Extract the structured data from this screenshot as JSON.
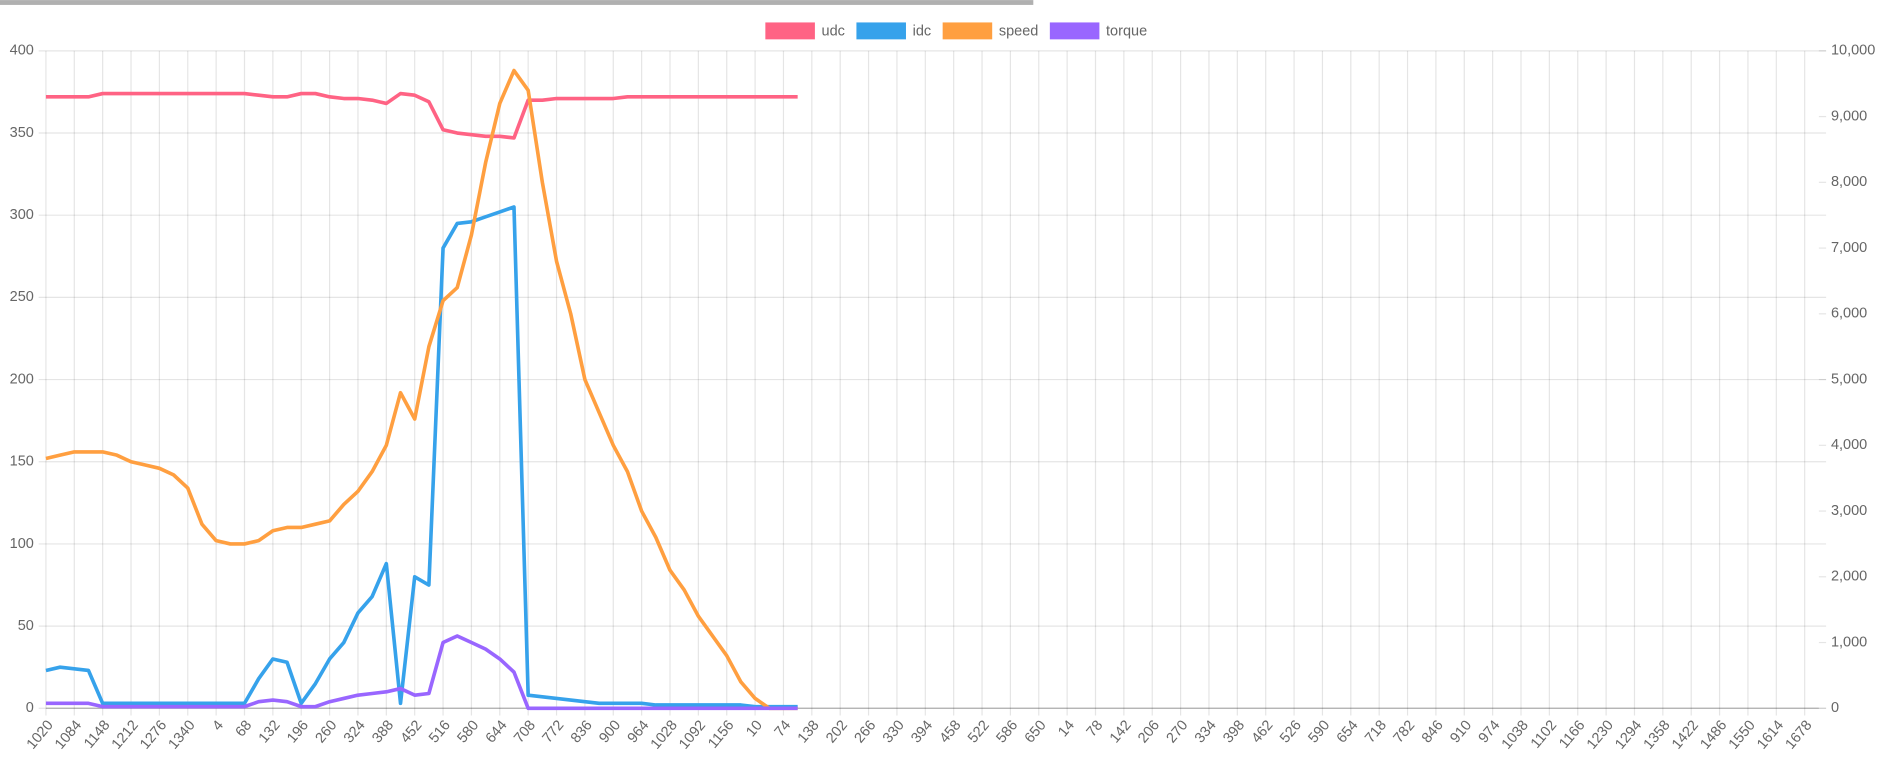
{
  "chart_data": {
    "type": "line",
    "categories": [
      "1020",
      null,
      "1084",
      null,
      "1148",
      null,
      "1212",
      null,
      "1276",
      null,
      "1340",
      null,
      "4",
      null,
      "68",
      null,
      "132",
      null,
      "196",
      null,
      "260",
      null,
      "324",
      null,
      "388",
      null,
      "452",
      null,
      "516",
      null,
      "580",
      null,
      "644",
      null,
      "708",
      null,
      "772",
      null,
      "836",
      null,
      "900",
      null,
      "964",
      null,
      "1028",
      null,
      "1092",
      null,
      "1156",
      null,
      "10",
      null,
      "74",
      null,
      "138",
      null,
      "202",
      null,
      "266",
      null,
      "330",
      null,
      "394",
      null,
      "458",
      null,
      "522",
      null,
      "586",
      null,
      "650",
      null,
      "14",
      null,
      "78",
      null,
      "142",
      null,
      "206",
      null,
      "270",
      null,
      "334",
      null,
      "398",
      null,
      "462",
      null,
      "526",
      null,
      "590",
      null,
      "654",
      null,
      "718",
      null,
      "782",
      null,
      "846",
      null,
      "910",
      null,
      "974",
      null,
      "1038",
      null,
      "1102",
      null,
      "1166",
      null,
      "1230",
      null,
      "1294",
      null,
      "1358",
      null,
      "1422",
      null,
      "1486",
      null,
      "1550",
      null,
      "1614",
      null,
      "1678",
      null
    ],
    "series": [
      {
        "name": "udc",
        "color": "#ff6384",
        "axis": "y",
        "values": [
          372,
          372,
          372,
          372,
          374,
          374,
          374,
          374,
          374,
          374,
          374,
          374,
          374,
          374,
          374,
          373,
          372,
          372,
          374,
          374,
          372,
          371,
          371,
          370,
          368,
          374,
          373,
          369,
          352,
          350,
          349,
          348,
          348,
          347,
          370,
          370,
          371,
          371,
          371,
          371,
          371,
          372,
          372,
          372,
          372,
          372,
          372,
          372,
          372,
          372,
          372,
          372,
          372,
          372,
          null,
          null,
          null,
          null,
          null,
          null,
          null,
          null,
          null,
          null,
          null,
          null,
          null,
          null,
          null,
          null,
          null,
          null,
          null,
          null,
          null,
          null,
          null,
          null,
          null,
          null,
          null,
          null,
          null,
          null,
          null,
          null,
          null,
          null,
          null,
          null,
          null,
          null,
          null,
          null,
          null,
          null,
          null,
          null,
          null,
          null,
          null,
          null,
          null,
          null,
          null,
          null,
          null,
          null,
          null,
          null,
          null,
          null,
          null,
          null,
          null,
          null,
          null,
          null,
          null,
          null,
          null,
          null,
          null,
          null,
          null,
          null
        ]
      },
      {
        "name": "idc",
        "color": "#36a2eb",
        "axis": "y",
        "values": [
          23,
          25,
          24,
          23,
          3,
          3,
          3,
          3,
          3,
          3,
          3,
          3,
          3,
          3,
          3,
          18,
          30,
          28,
          3,
          15,
          30,
          40,
          58,
          68,
          88,
          3,
          80,
          75,
          280,
          295,
          296,
          299,
          302,
          305,
          8,
          7,
          6,
          5,
          4,
          3,
          3,
          3,
          3,
          2,
          2,
          2,
          2,
          2,
          2,
          2,
          1,
          1,
          1,
          1,
          null,
          null,
          null,
          null,
          null,
          null,
          null,
          null,
          null,
          null,
          null,
          null,
          null,
          null,
          null,
          null,
          null,
          null,
          null,
          null,
          null,
          null,
          null,
          null,
          null,
          null,
          null,
          null,
          null,
          null,
          null,
          null,
          null,
          null,
          null,
          null,
          null,
          null,
          null,
          null,
          null,
          null,
          null,
          null,
          null,
          null,
          null,
          null,
          null,
          null,
          null,
          null,
          null,
          null,
          null,
          null,
          null,
          null,
          null,
          null,
          null,
          null,
          null,
          null,
          null,
          null,
          null,
          null,
          null,
          null,
          null,
          null
        ]
      },
      {
        "name": "speed",
        "color": "#ff9f40",
        "axis": "y2",
        "values": [
          3800,
          3850,
          3900,
          3900,
          3900,
          3850,
          3750,
          3700,
          3650,
          3550,
          3350,
          2800,
          2550,
          2500,
          2500,
          2550,
          2700,
          2750,
          2750,
          2800,
          2850,
          3100,
          3300,
          3600,
          4000,
          4800,
          4400,
          5500,
          6200,
          6400,
          7200,
          8300,
          9200,
          9700,
          9400,
          8000,
          6800,
          6000,
          5000,
          4500,
          4000,
          3600,
          3000,
          2600,
          2100,
          1800,
          1400,
          1100,
          800,
          400,
          150,
          0,
          0,
          0,
          null,
          null,
          null,
          null,
          null,
          null,
          null,
          null,
          null,
          null,
          null,
          null,
          null,
          null,
          null,
          null,
          null,
          null,
          null,
          null,
          null,
          null,
          null,
          null,
          null,
          null,
          null,
          null,
          null,
          null,
          null,
          null,
          null,
          null,
          null,
          null,
          null,
          null,
          null,
          null,
          null,
          null,
          null,
          null,
          null,
          null,
          null,
          null,
          null,
          null,
          null,
          null,
          null,
          null,
          null,
          null,
          null,
          null,
          null,
          null,
          null,
          null,
          null,
          null,
          null,
          null,
          null,
          null,
          null,
          null,
          null,
          null
        ]
      },
      {
        "name": "torque",
        "color": "#9966ff",
        "axis": "y",
        "values": [
          3,
          3,
          3,
          3,
          1,
          1,
          1,
          1,
          1,
          1,
          1,
          1,
          1,
          1,
          1,
          4,
          5,
          4,
          1,
          1,
          4,
          6,
          8,
          9,
          10,
          12,
          8,
          9,
          40,
          44,
          40,
          36,
          30,
          22,
          0,
          0,
          0,
          0,
          0,
          0,
          0,
          0,
          0,
          0,
          0,
          0,
          0,
          0,
          0,
          0,
          0,
          0,
          0,
          0,
          null,
          null,
          null,
          null,
          null,
          null,
          null,
          null,
          null,
          null,
          null,
          null,
          null,
          null,
          null,
          null,
          null,
          null,
          null,
          null,
          null,
          null,
          null,
          null,
          null,
          null,
          null,
          null,
          null,
          null,
          null,
          null,
          null,
          null,
          null,
          null,
          null,
          null,
          null,
          null,
          null,
          null,
          null,
          null,
          null,
          null,
          null,
          null,
          null,
          null,
          null,
          null,
          null,
          null,
          null,
          null,
          null,
          null,
          null,
          null,
          null,
          null,
          null,
          null,
          null,
          null,
          null,
          null,
          null,
          null,
          null,
          null
        ]
      }
    ],
    "ylim": [
      0,
      400
    ],
    "yticks": [
      0,
      50,
      100,
      150,
      200,
      250,
      300,
      350,
      400
    ],
    "y2lim": [
      0,
      10000
    ],
    "y2ticks": [
      0,
      {
        "value": 1000,
        "label": "1,000"
      },
      {
        "value": 2000,
        "label": "2,000"
      },
      {
        "value": 3000,
        "label": "3,000"
      },
      {
        "value": 4000,
        "label": "4,000"
      },
      {
        "value": 5000,
        "label": "5,000"
      },
      {
        "value": 6000,
        "label": "6,000"
      },
      {
        "value": 7000,
        "label": "7,000"
      },
      {
        "value": 8000,
        "label": "8,000"
      },
      {
        "value": 9000,
        "label": "9,000"
      },
      {
        "value": 10000,
        "label": "10,000"
      }
    ],
    "grid": true,
    "legend": "top"
  }
}
